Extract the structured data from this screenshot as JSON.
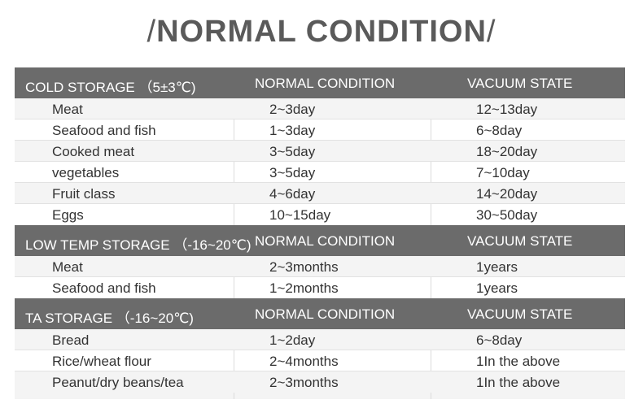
{
  "title": "NORMAL CONDITION",
  "sections": [
    {
      "header": [
        "COLD  STORAGE （5±3℃)",
        "NORMAL CONDITION",
        "VACUUM STATE"
      ],
      "rows": [
        [
          "Meat",
          "2~3day",
          "12~13day"
        ],
        [
          "Seafood and fish",
          "1~3day",
          "6~8day"
        ],
        [
          "Cooked meat",
          "3~5day",
          "18~20day"
        ],
        [
          "vegetables",
          "3~5day",
          "7~10day"
        ],
        [
          "Fruit class",
          "4~6day",
          "14~20day"
        ],
        [
          "Eggs",
          "10~15day",
          "30~50day"
        ]
      ]
    },
    {
      "header": [
        "LOW TEMP STORAGE （-16~20℃)",
        "NORMAL CONDITION",
        "VACUUM STATE"
      ],
      "rows": [
        [
          "Meat",
          "2~3months",
          "1years"
        ],
        [
          "Seafood and fish",
          "1~2months",
          "1years"
        ]
      ]
    },
    {
      "header": [
        "TA STORAGE （-16~20℃)",
        "NORMAL CONDITION",
        "VACUUM STATE"
      ],
      "rows": [
        [
          "Bread",
          "1~2day",
          "6~8day"
        ],
        [
          "Rice/wheat flour",
          "2~4months",
          "1In the above"
        ],
        [
          "Peanut/dry beans/tea",
          "2~3months",
          "1In the above"
        ]
      ]
    }
  ]
}
